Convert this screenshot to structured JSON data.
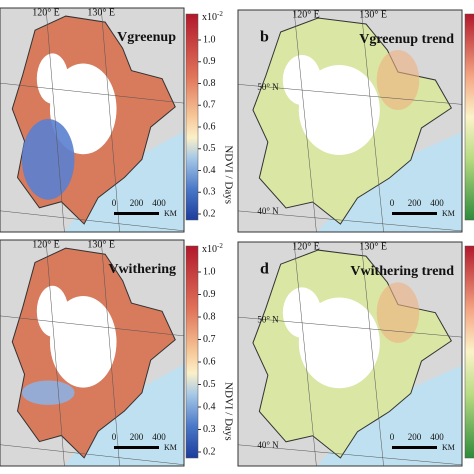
{
  "panels": [
    {
      "title": "Vgreenup",
      "lon_labels": [
        "120° E",
        "130° E"
      ],
      "scale": {
        "ticks": [
          "0",
          "200",
          "400"
        ],
        "unit": "KM"
      }
    },
    {
      "letter": "b",
      "title": "Vgreenup trend",
      "lon_labels": [
        "120° E",
        "130° E"
      ],
      "lat_labels": [
        "50° N",
        "40° N"
      ],
      "scale": {
        "ticks": [
          "0",
          "200",
          "400"
        ],
        "unit": "KM"
      }
    },
    {
      "title": "Vwithering",
      "lon_labels": [
        "120° E",
        "130° E"
      ],
      "scale": {
        "ticks": [
          "0",
          "200",
          "400"
        ],
        "unit": "KM"
      }
    },
    {
      "letter": "d",
      "title": "Vwithering trend",
      "lon_labels": [
        "120° E",
        "130° E"
      ],
      "lat_labels": [
        "50° N",
        "40° N"
      ],
      "scale": {
        "ticks": [
          "0",
          "200",
          "400"
        ],
        "unit": "KM"
      }
    }
  ],
  "colorbars": [
    {
      "multiplier": {
        "base": "x10",
        "power": "-2"
      },
      "ticks": [
        "1.0",
        "0.9",
        "0.8",
        "0.7",
        "0.6",
        "0.5",
        "0.4",
        "0.3",
        "0.2"
      ],
      "label": "NDVI / Days"
    },
    {
      "multiplier": {
        "base": "x10",
        "power": "-2"
      },
      "ticks": [
        "1.0",
        "0.9",
        "0.8",
        "0.7",
        "0.6",
        "0.5",
        "0.4",
        "0.3",
        "0.2"
      ],
      "label": "NDVI / Days"
    }
  ]
}
